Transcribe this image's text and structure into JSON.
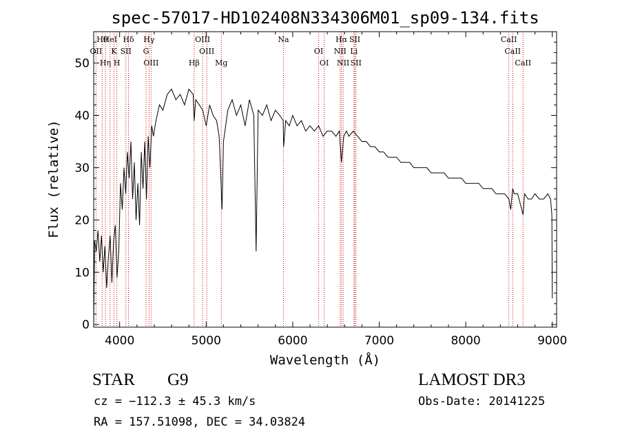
{
  "chart_data": {
    "type": "line",
    "title": "spec-57017-HD102408N334306M01_sp09-134.fits",
    "xlabel": "Wavelength (Å)",
    "ylabel": "Flux (relative)",
    "xlim": [
      3700,
      9050
    ],
    "ylim": [
      -0.5,
      56
    ],
    "xticks": [
      4000,
      5000,
      6000,
      7000,
      8000,
      9000
    ],
    "yticks": [
      0,
      10,
      20,
      30,
      40,
      50
    ],
    "series": [
      {
        "name": "flux",
        "x": [
          3700,
          3710,
          3730,
          3750,
          3770,
          3790,
          3810,
          3830,
          3850,
          3870,
          3890,
          3910,
          3930,
          3950,
          3970,
          3990,
          4010,
          4030,
          4050,
          4070,
          4090,
          4110,
          4130,
          4150,
          4170,
          4190,
          4210,
          4230,
          4250,
          4270,
          4290,
          4310,
          4330,
          4350,
          4370,
          4390,
          4420,
          4460,
          4500,
          4550,
          4600,
          4650,
          4700,
          4750,
          4800,
          4850,
          4861,
          4880,
          4920,
          4960,
          5000,
          5040,
          5080,
          5120,
          5150,
          5170,
          5183,
          5200,
          5250,
          5300,
          5350,
          5400,
          5450,
          5500,
          5550,
          5577,
          5600,
          5650,
          5700,
          5750,
          5800,
          5850,
          5890,
          5895,
          5920,
          5960,
          6000,
          6050,
          6100,
          6150,
          6200,
          6250,
          6300,
          6350,
          6400,
          6450,
          6500,
          6540,
          6563,
          6590,
          6620,
          6650,
          6700,
          6750,
          6800,
          6850,
          6900,
          6950,
          7000,
          7050,
          7100,
          7150,
          7200,
          7250,
          7300,
          7350,
          7400,
          7450,
          7500,
          7550,
          7600,
          7650,
          7700,
          7750,
          7800,
          7850,
          7900,
          7950,
          8000,
          8050,
          8100,
          8150,
          8200,
          8250,
          8300,
          8350,
          8400,
          8450,
          8498,
          8520,
          8542,
          8560,
          8600,
          8662,
          8680,
          8720,
          8760,
          8800,
          8850,
          8900,
          8950,
          8980,
          8995,
          9000
        ],
        "values": [
          0,
          16,
          14,
          18,
          12,
          17,
          10,
          15,
          7,
          13,
          17,
          8,
          16,
          19,
          9,
          14,
          27,
          22,
          30,
          25,
          33,
          28,
          35,
          24,
          31,
          20,
          27,
          19,
          33,
          26,
          35,
          24,
          36,
          30,
          38,
          36,
          39,
          42,
          41,
          44,
          45,
          43,
          44,
          42,
          45,
          44,
          39,
          43,
          42,
          41,
          38,
          42,
          40,
          39,
          36,
          28,
          22,
          35,
          41,
          43,
          40,
          42,
          38,
          43,
          40,
          14,
          41,
          40,
          42,
          39,
          41,
          40,
          39,
          34,
          39,
          38,
          40,
          38,
          39,
          37,
          38,
          37,
          38,
          36,
          37,
          37,
          36,
          37,
          31,
          36,
          37,
          36,
          37,
          36,
          35,
          35,
          34,
          34,
          33,
          33,
          32,
          32,
          32,
          31,
          31,
          31,
          30,
          30,
          30,
          30,
          29,
          29,
          29,
          29,
          28,
          28,
          28,
          28,
          27,
          27,
          27,
          27,
          26,
          26,
          26,
          25,
          25,
          25,
          24,
          22,
          26,
          25,
          25,
          21,
          25,
          24,
          24,
          25,
          24,
          24,
          25,
          24,
          21,
          5
        ]
      }
    ],
    "lines": [
      {
        "name": "Hθ",
        "wave": 3798
      },
      {
        "name": "OII",
        "wave": 3727
      },
      {
        "name": "Hη",
        "wave": 3835
      },
      {
        "name": "HeI",
        "wave": 3889
      },
      {
        "name": "K",
        "wave": 3934
      },
      {
        "name": "H",
        "wave": 3968
      },
      {
        "name": "Hδ",
        "wave": 4102
      },
      {
        "name": "SII",
        "wave": 4072
      },
      {
        "name": "OIII",
        "wave": 4363
      },
      {
        "name": "Hγ",
        "wave": 4340
      },
      {
        "name": "G",
        "wave": 4305
      },
      {
        "name": "Hβ",
        "wave": 4861
      },
      {
        "name": "OIII",
        "wave": 4959
      },
      {
        "name": "OIII",
        "wave": 5007
      },
      {
        "name": "Mg",
        "wave": 5175
      },
      {
        "name": "Na",
        "wave": 5893
      },
      {
        "name": "OI",
        "wave": 6300
      },
      {
        "name": "OI",
        "wave": 6364
      },
      {
        "name": "Hα",
        "wave": 6563
      },
      {
        "name": "NII",
        "wave": 6548
      },
      {
        "name": "NII",
        "wave": 6583
      },
      {
        "name": "SII",
        "wave": 6717
      },
      {
        "name": "Li",
        "wave": 6708
      },
      {
        "name": "SII",
        "wave": 6731
      },
      {
        "name": "CaII",
        "wave": 8498
      },
      {
        "name": "CaII",
        "wave": 8542
      },
      {
        "name": "CaII",
        "wave": 8662
      }
    ]
  },
  "info": {
    "class": "STAR",
    "subclass": "G9",
    "survey": "LAMOST DR3",
    "cz": "cz = −112.3 ± 45.3 km/s",
    "obs_date": "Obs-Date: 20141225",
    "radec": "RA = 157.51098, DEC =  34.03824"
  },
  "colors": {
    "lines": "#cc0000",
    "ink": "#000000"
  }
}
